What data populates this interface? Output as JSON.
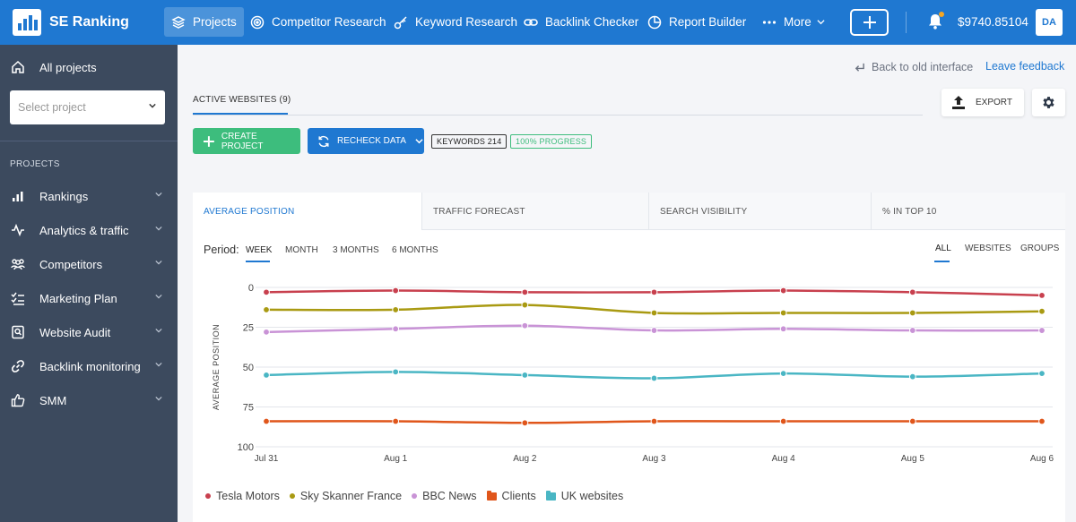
{
  "topbar": {
    "brand": "SE Ranking",
    "nav": [
      {
        "label": "Projects",
        "icon": "layers-icon",
        "active": true
      },
      {
        "label": "Competitor Research",
        "icon": "target-icon"
      },
      {
        "label": "Keyword Research",
        "icon": "key-icon"
      },
      {
        "label": "Backlink Checker",
        "icon": "link-icon"
      },
      {
        "label": "Report Builder",
        "icon": "pie-chart-icon"
      },
      {
        "label": "More",
        "icon": "more-dots-icon"
      }
    ],
    "balance": "$9740.85104",
    "avatar": "DA"
  },
  "sidebar": {
    "all_projects": "All projects",
    "select_placeholder": "Select project",
    "section_title": "PROJECTS",
    "items": [
      {
        "label": "Rankings",
        "icon": "bar-chart-icon"
      },
      {
        "label": "Analytics & traffic",
        "icon": "pulse-icon"
      },
      {
        "label": "Competitors",
        "icon": "users-icon"
      },
      {
        "label": "Marketing Plan",
        "icon": "checklist-icon"
      },
      {
        "label": "Website Audit",
        "icon": "audit-icon"
      },
      {
        "label": "Backlink monitoring",
        "icon": "link-icon"
      },
      {
        "label": "SMM",
        "icon": "thumbs-up-icon"
      }
    ]
  },
  "header": {
    "back_link": "Back to old interface",
    "feedback": "Leave feedback",
    "active_tab": "ACTIVE WEBSITES (9)",
    "export": "EXPORT"
  },
  "toolbar": {
    "create": "CREATE PROJECT",
    "recheck": "RECHECK DATA",
    "keywords_badge": "KEYWORDS 214",
    "progress_badge": "100%  PROGRESS"
  },
  "metric_tabs": [
    "AVERAGE POSITION",
    "TRAFFIC FORECAST",
    "SEARCH VISIBILITY",
    "% IN TOP 10"
  ],
  "period": {
    "label": "Period:",
    "options": [
      "WEEK",
      "MONTH",
      "3 MONTHS",
      "6 MONTHS"
    ],
    "selected": "WEEK"
  },
  "view": {
    "options": [
      "ALL",
      "WEBSITES",
      "GROUPS"
    ],
    "selected": "ALL"
  },
  "legend_items": [
    {
      "name": "Tesla Motors",
      "color": "#c8404e",
      "marker": "dot"
    },
    {
      "name": "Sky Skanner France",
      "color": "#a99a12",
      "marker": "dot"
    },
    {
      "name": "BBC News",
      "color": "#c993d6",
      "marker": "dot"
    },
    {
      "name": "Clients",
      "color": "#e0561b",
      "marker": "folder"
    },
    {
      "name": "UK websites",
      "color": "#4ab6c4",
      "marker": "folder"
    }
  ],
  "chart_data": {
    "type": "line",
    "ylabel": "AVERAGE POSITION",
    "ylim": [
      0,
      100
    ],
    "y_inverted": true,
    "yticks": [
      0,
      25,
      50,
      75,
      100
    ],
    "categories": [
      "Jul 31",
      "Aug 1",
      "Aug 2",
      "Aug 3",
      "Aug 4",
      "Aug 5",
      "Aug 6"
    ],
    "grid": true,
    "series": [
      {
        "name": "Tesla Motors",
        "color": "#c8404e",
        "values": [
          3,
          2,
          3,
          3,
          2,
          3,
          5
        ]
      },
      {
        "name": "Sky Skanner France",
        "color": "#a99a12",
        "values": [
          14,
          14,
          11,
          16,
          16,
          16,
          15
        ]
      },
      {
        "name": "BBC News",
        "color": "#c993d6",
        "values": [
          28,
          26,
          24,
          27,
          26,
          27,
          27
        ]
      },
      {
        "name": "UK websites",
        "color": "#4ab6c4",
        "values": [
          55,
          53,
          55,
          57,
          54,
          56,
          54
        ]
      },
      {
        "name": "Clients",
        "color": "#e0561b",
        "values": [
          84,
          84,
          85,
          84,
          84,
          84,
          84
        ]
      }
    ]
  }
}
